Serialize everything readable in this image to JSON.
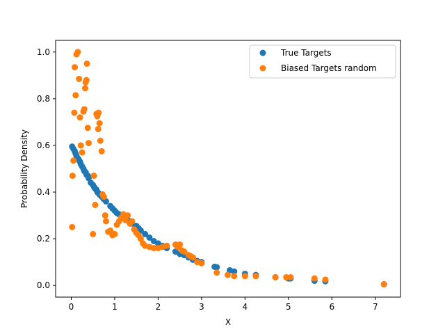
{
  "chart_data": {
    "type": "scatter",
    "title": "",
    "xlabel": "X",
    "ylabel": "Probability Density",
    "xlim": [
      -0.36,
      7.58
    ],
    "ylim": [
      -0.05,
      1.05
    ],
    "xticks": [
      0,
      1,
      2,
      3,
      4,
      5,
      6,
      7
    ],
    "yticks": [
      0.0,
      0.2,
      0.4,
      0.6,
      0.8,
      1.0
    ],
    "xtick_labels": [
      "0",
      "1",
      "2",
      "3",
      "4",
      "5",
      "6",
      "7"
    ],
    "ytick_labels": [
      "0.0",
      "0.2",
      "0.4",
      "0.6",
      "0.8",
      "1.0"
    ],
    "grid": false,
    "legend_position": "top-right",
    "series": [
      {
        "name": "True Targets",
        "color": "#1f77b4",
        "x": [
          0.02,
          0.05,
          0.08,
          0.1,
          0.12,
          0.15,
          0.17,
          0.2,
          0.22,
          0.25,
          0.28,
          0.3,
          0.33,
          0.35,
          0.38,
          0.4,
          0.45,
          0.5,
          0.53,
          0.55,
          0.58,
          0.6,
          0.63,
          0.65,
          0.7,
          0.75,
          0.8,
          0.9,
          0.95,
          1.0,
          1.05,
          1.1,
          1.2,
          1.3,
          1.4,
          1.5,
          1.55,
          1.6,
          1.7,
          1.8,
          1.9,
          2.0,
          2.1,
          2.2,
          2.4,
          2.5,
          2.6,
          2.7,
          2.8,
          2.9,
          3.0,
          3.3,
          3.35,
          3.65,
          3.75,
          4.0,
          4.25,
          4.7,
          5.0,
          5.05,
          5.6,
          5.85,
          7.2
        ],
        "y": [
          0.595,
          0.585,
          0.575,
          0.565,
          0.555,
          0.545,
          0.54,
          0.53,
          0.52,
          0.51,
          0.5,
          0.49,
          0.485,
          0.475,
          0.47,
          0.46,
          0.44,
          0.43,
          0.42,
          0.415,
          0.41,
          0.4,
          0.395,
          0.39,
          0.38,
          0.37,
          0.36,
          0.34,
          0.33,
          0.32,
          0.31,
          0.305,
          0.29,
          0.28,
          0.265,
          0.255,
          0.245,
          0.235,
          0.22,
          0.205,
          0.19,
          0.18,
          0.17,
          0.16,
          0.145,
          0.135,
          0.13,
          0.12,
          0.11,
          0.105,
          0.1,
          0.08,
          0.078,
          0.065,
          0.06,
          0.05,
          0.045,
          0.035,
          0.03,
          0.03,
          0.02,
          0.018,
          0.005
        ]
      },
      {
        "name": "Biased Targets random",
        "color": "#ff7f0e",
        "x": [
          0.02,
          0.03,
          0.05,
          0.07,
          0.08,
          0.1,
          0.12,
          0.15,
          0.18,
          0.2,
          0.22,
          0.25,
          0.28,
          0.3,
          0.32,
          0.33,
          0.35,
          0.36,
          0.38,
          0.4,
          0.5,
          0.52,
          0.55,
          0.58,
          0.6,
          0.62,
          0.63,
          0.65,
          0.67,
          0.7,
          0.72,
          0.75,
          0.78,
          0.8,
          0.85,
          0.9,
          0.95,
          1.0,
          1.05,
          1.1,
          1.15,
          1.2,
          1.25,
          1.3,
          1.35,
          1.4,
          1.45,
          1.5,
          1.55,
          1.6,
          1.65,
          1.7,
          1.8,
          1.9,
          2.0,
          2.1,
          2.2,
          2.4,
          2.45,
          2.5,
          2.55,
          2.6,
          2.7,
          2.75,
          2.8,
          2.9,
          3.0,
          3.35,
          3.6,
          3.75,
          4.0,
          4.25,
          4.7,
          4.95,
          5.05,
          5.6,
          5.85,
          7.2
        ],
        "y": [
          0.25,
          0.47,
          0.535,
          0.74,
          0.935,
          0.815,
          0.99,
          1.0,
          0.885,
          0.72,
          0.6,
          0.57,
          0.745,
          0.755,
          0.845,
          0.87,
          0.88,
          0.95,
          0.675,
          0.61,
          0.22,
          0.47,
          0.345,
          0.735,
          0.725,
          0.67,
          0.74,
          0.695,
          0.62,
          0.575,
          0.39,
          0.38,
          0.3,
          0.275,
          0.23,
          0.235,
          0.215,
          0.22,
          0.26,
          0.275,
          0.29,
          0.305,
          0.28,
          0.3,
          0.265,
          0.275,
          0.24,
          0.225,
          0.215,
          0.2,
          0.18,
          0.17,
          0.165,
          0.16,
          0.16,
          0.165,
          0.17,
          0.175,
          0.165,
          0.175,
          0.15,
          0.145,
          0.13,
          0.125,
          0.12,
          0.1,
          0.095,
          0.055,
          0.045,
          0.04,
          0.04,
          0.04,
          0.035,
          0.035,
          0.035,
          0.03,
          0.025,
          0.005
        ]
      }
    ]
  }
}
